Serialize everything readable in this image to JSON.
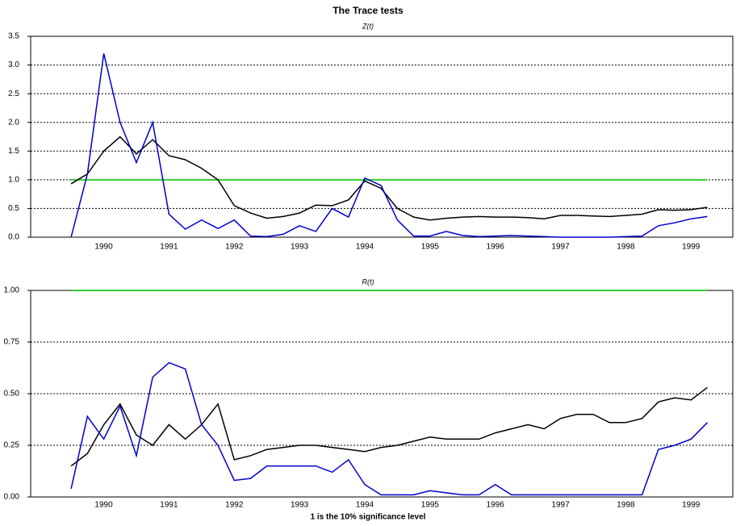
{
  "title": "The Trace tests",
  "chart_data": [
    {
      "type": "line",
      "subtitle": "Z(t)",
      "x": [
        1990.0,
        1990.25,
        1990.5,
        1990.75,
        1991.0,
        1991.25,
        1991.5,
        1991.75,
        1992.0,
        1992.25,
        1992.5,
        1992.75,
        1993.0,
        1993.25,
        1993.5,
        1993.75,
        1994.0,
        1994.25,
        1994.5,
        1994.75,
        1995.0,
        1995.25,
        1995.5,
        1995.75,
        1996.0,
        1996.25,
        1996.5,
        1996.75,
        1997.0,
        1997.25,
        1997.5,
        1997.75,
        1998.0,
        1998.25,
        1998.5,
        1998.75,
        1999.0,
        1999.25,
        1999.5,
        1999.75
      ],
      "series": [
        {
          "color": "#000000",
          "values": [
            0.93,
            1.1,
            1.5,
            1.75,
            1.45,
            1.7,
            1.42,
            1.35,
            1.2,
            1.0,
            0.55,
            0.42,
            0.33,
            0.36,
            0.42,
            0.56,
            0.55,
            0.65,
            0.98,
            0.85,
            0.5,
            0.35,
            0.3,
            0.33,
            0.35,
            0.36,
            0.35,
            0.35,
            0.34,
            0.32,
            0.38,
            0.38,
            0.37,
            0.36,
            0.38,
            0.4,
            0.48,
            0.47,
            0.48,
            0.52
          ]
        },
        {
          "color": "#0000cc",
          "values": [
            0.0,
            1.1,
            3.2,
            2.0,
            1.3,
            2.0,
            0.4,
            0.14,
            0.3,
            0.15,
            0.3,
            0.02,
            0.01,
            0.05,
            0.2,
            0.1,
            0.5,
            0.35,
            1.03,
            0.9,
            0.3,
            0.02,
            0.02,
            0.1,
            0.03,
            0.01,
            0.02,
            0.03,
            0.02,
            0.01,
            0,
            0,
            0,
            0,
            0.01,
            0.02,
            0.2,
            0.25,
            0.32,
            0.36
          ]
        }
      ],
      "reference_line": {
        "value": 1,
        "color": "#33cc33"
      },
      "xlim": [
        1989.38,
        2000.14
      ],
      "xticks": [
        {
          "value": 1990.5,
          "label": "1990"
        },
        {
          "value": 1991.5,
          "label": "1991"
        },
        {
          "value": 1992.5,
          "label": "1992"
        },
        {
          "value": 1993.5,
          "label": "1993"
        },
        {
          "value": 1994.5,
          "label": "1994"
        },
        {
          "value": 1995.5,
          "label": "1995"
        },
        {
          "value": 1996.5,
          "label": "1996"
        },
        {
          "value": 1997.5,
          "label": "1997"
        },
        {
          "value": 1998.5,
          "label": "1998"
        },
        {
          "value": 1999.5,
          "label": "1999"
        }
      ],
      "ylim": [
        0,
        3.5
      ],
      "yticks": [
        {
          "value": 0,
          "label": "0.0"
        },
        0.5,
        {
          "value": 1,
          "label": "1.0"
        },
        1.5,
        {
          "value": 2,
          "label": "2.0"
        },
        2.5,
        {
          "value": 3,
          "label": "3.0"
        },
        3.5
      ],
      "grid": true
    },
    {
      "type": "line",
      "subtitle": "R(t)",
      "x_label": "1 is the 10% significance level",
      "x": [
        1990.0,
        1990.25,
        1990.5,
        1990.75,
        1991.0,
        1991.25,
        1991.5,
        1991.75,
        1992.0,
        1992.25,
        1992.5,
        1992.75,
        1993.0,
        1993.25,
        1993.5,
        1993.75,
        1994.0,
        1994.25,
        1994.5,
        1994.75,
        1995.0,
        1995.25,
        1995.5,
        1995.75,
        1996.0,
        1996.25,
        1996.5,
        1996.75,
        1997.0,
        1997.25,
        1997.5,
        1997.75,
        1998.0,
        1998.25,
        1998.5,
        1998.75,
        1999.0,
        1999.25,
        1999.5,
        1999.75
      ],
      "series": [
        {
          "color": "#000000",
          "values": [
            0.15,
            0.21,
            0.35,
            0.45,
            0.3,
            0.25,
            0.35,
            0.28,
            0.35,
            0.45,
            0.18,
            0.2,
            0.23,
            0.24,
            0.25,
            0.25,
            0.24,
            0.23,
            0.22,
            0.24,
            0.25,
            0.27,
            0.29,
            0.28,
            0.28,
            0.28,
            0.31,
            0.33,
            0.35,
            0.33,
            0.38,
            0.4,
            0.4,
            0.36,
            0.36,
            0.38,
            0.46,
            0.48,
            0.47,
            0.53
          ]
        },
        {
          "color": "#0000cc",
          "values": [
            0.04,
            0.39,
            0.28,
            0.44,
            0.2,
            0.58,
            0.65,
            0.62,
            0.35,
            0.25,
            0.08,
            0.09,
            0.15,
            0.15,
            0.15,
            0.15,
            0.12,
            0.18,
            0.06,
            0.01,
            0.01,
            0.01,
            0.03,
            0.02,
            0.01,
            0.01,
            0.06,
            0.01,
            0.01,
            0.01,
            0.01,
            0.01,
            0.01,
            0.01,
            0.01,
            0.01,
            0.23,
            0.25,
            0.28,
            0.36
          ]
        }
      ],
      "reference_line": {
        "value": 1,
        "color": "#33cc33"
      },
      "xlim": [
        1989.38,
        2000.14
      ],
      "xticks": [
        {
          "value": 1990.5,
          "label": "1990"
        },
        {
          "value": 1991.5,
          "label": "1991"
        },
        {
          "value": 1992.5,
          "label": "1992"
        },
        {
          "value": 1993.5,
          "label": "1993"
        },
        {
          "value": 1994.5,
          "label": "1994"
        },
        {
          "value": 1995.5,
          "label": "1995"
        },
        {
          "value": 1996.5,
          "label": "1996"
        },
        {
          "value": 1997.5,
          "label": "1997"
        },
        {
          "value": 1998.5,
          "label": "1998"
        },
        {
          "value": 1999.5,
          "label": "1999"
        }
      ],
      "ylim": [
        0,
        1
      ],
      "yticks": [
        {
          "value": 0,
          "label": "0.00"
        },
        0.25,
        {
          "value": 0.5,
          "label": "0.50"
        },
        0.75,
        {
          "value": 1,
          "label": "1.00"
        }
      ],
      "grid": true
    }
  ]
}
